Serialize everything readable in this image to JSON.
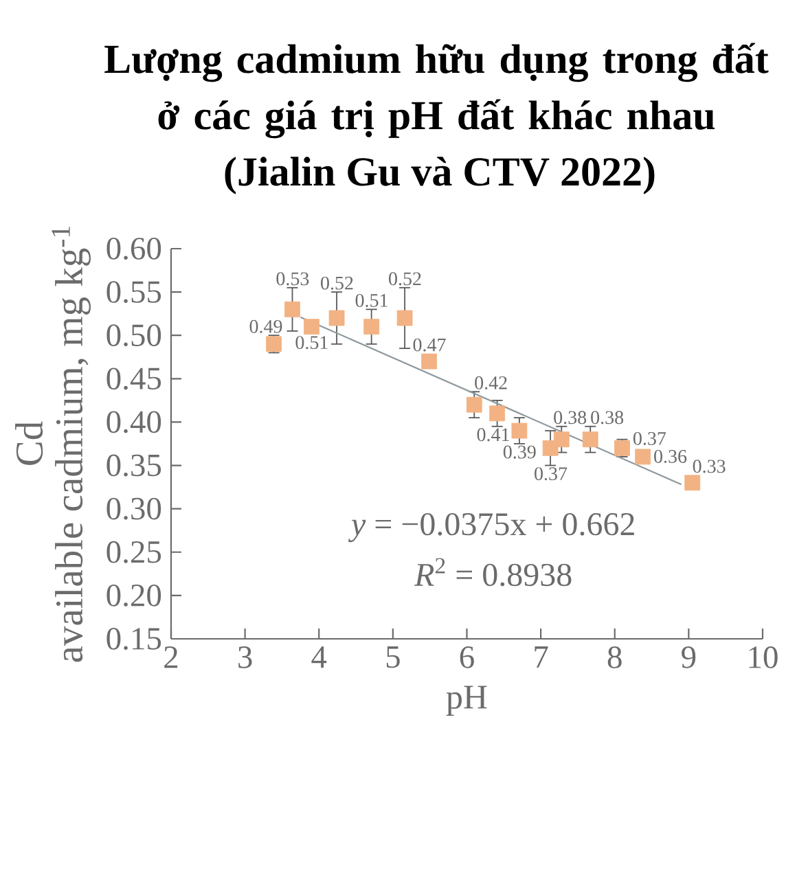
{
  "chart_data": {
    "type": "scatter",
    "title": "Lượng cadmium hữu dụng trong đất\nở các giá trị pH đất khác nhau",
    "subtitle": "(Jialin Gu và CTV 2022)",
    "xlabel": "pH",
    "ylabel": "Cd\navailable cadmium, mg kg$^{-1}$",
    "xlim": [
      2,
      10
    ],
    "xticks": [
      2,
      3,
      4,
      5,
      6,
      7,
      8,
      9,
      10
    ],
    "ylim": [
      0.15,
      0.6
    ],
    "yticks": [
      0.15,
      {
        "value": 0.2,
        "label": "0.20"
      },
      0.25,
      {
        "value": 0.3,
        "label": "0.30"
      },
      0.35,
      {
        "value": 0.4,
        "label": "0.40"
      },
      0.45,
      {
        "value": 0.5,
        "label": "0.50"
      },
      0.55,
      {
        "value": 0.6,
        "label": "0.60"
      }
    ],
    "series": [
      {
        "color": "#f2b283",
        "marker": "square",
        "x": [
          3.39,
          3.64,
          3.9,
          4.24,
          4.71,
          5.16,
          5.49,
          6.1,
          6.41,
          6.71,
          7.13,
          7.28,
          7.67,
          8.1,
          8.38,
          9.05
        ],
        "values": [
          0.49,
          0.53,
          0.51,
          0.52,
          0.51,
          0.52,
          0.47,
          0.42,
          0.41,
          0.39,
          0.37,
          0.38,
          0.38,
          0.37,
          0.36,
          0.33
        ],
        "errors": [
          0.01,
          0.025,
          null,
          0.03,
          0.02,
          0.035,
          null,
          0.015,
          0.015,
          0.015,
          0.02,
          0.015,
          0.015,
          0.01,
          null,
          null
        ],
        "value_labels": [
          "0.49",
          "0.53",
          "0.51",
          "0.52",
          "0.51",
          "0.52",
          "0.47",
          "0.42",
          "0.41",
          "0.39",
          "0.37",
          "0.38",
          "0.38",
          "0.37",
          "0.36",
          "0.33"
        ]
      },
      {
        "type": "line",
        "color": "#8d989e",
        "line_style": "solid",
        "x": [
          3.75,
          8.9
        ],
        "values": [
          0.521,
          0.328
        ]
      }
    ],
    "annotations": [
      "*y* = −0.0375x + 0.662",
      "*R*$^{2}$ = 0.8938"
    ]
  }
}
